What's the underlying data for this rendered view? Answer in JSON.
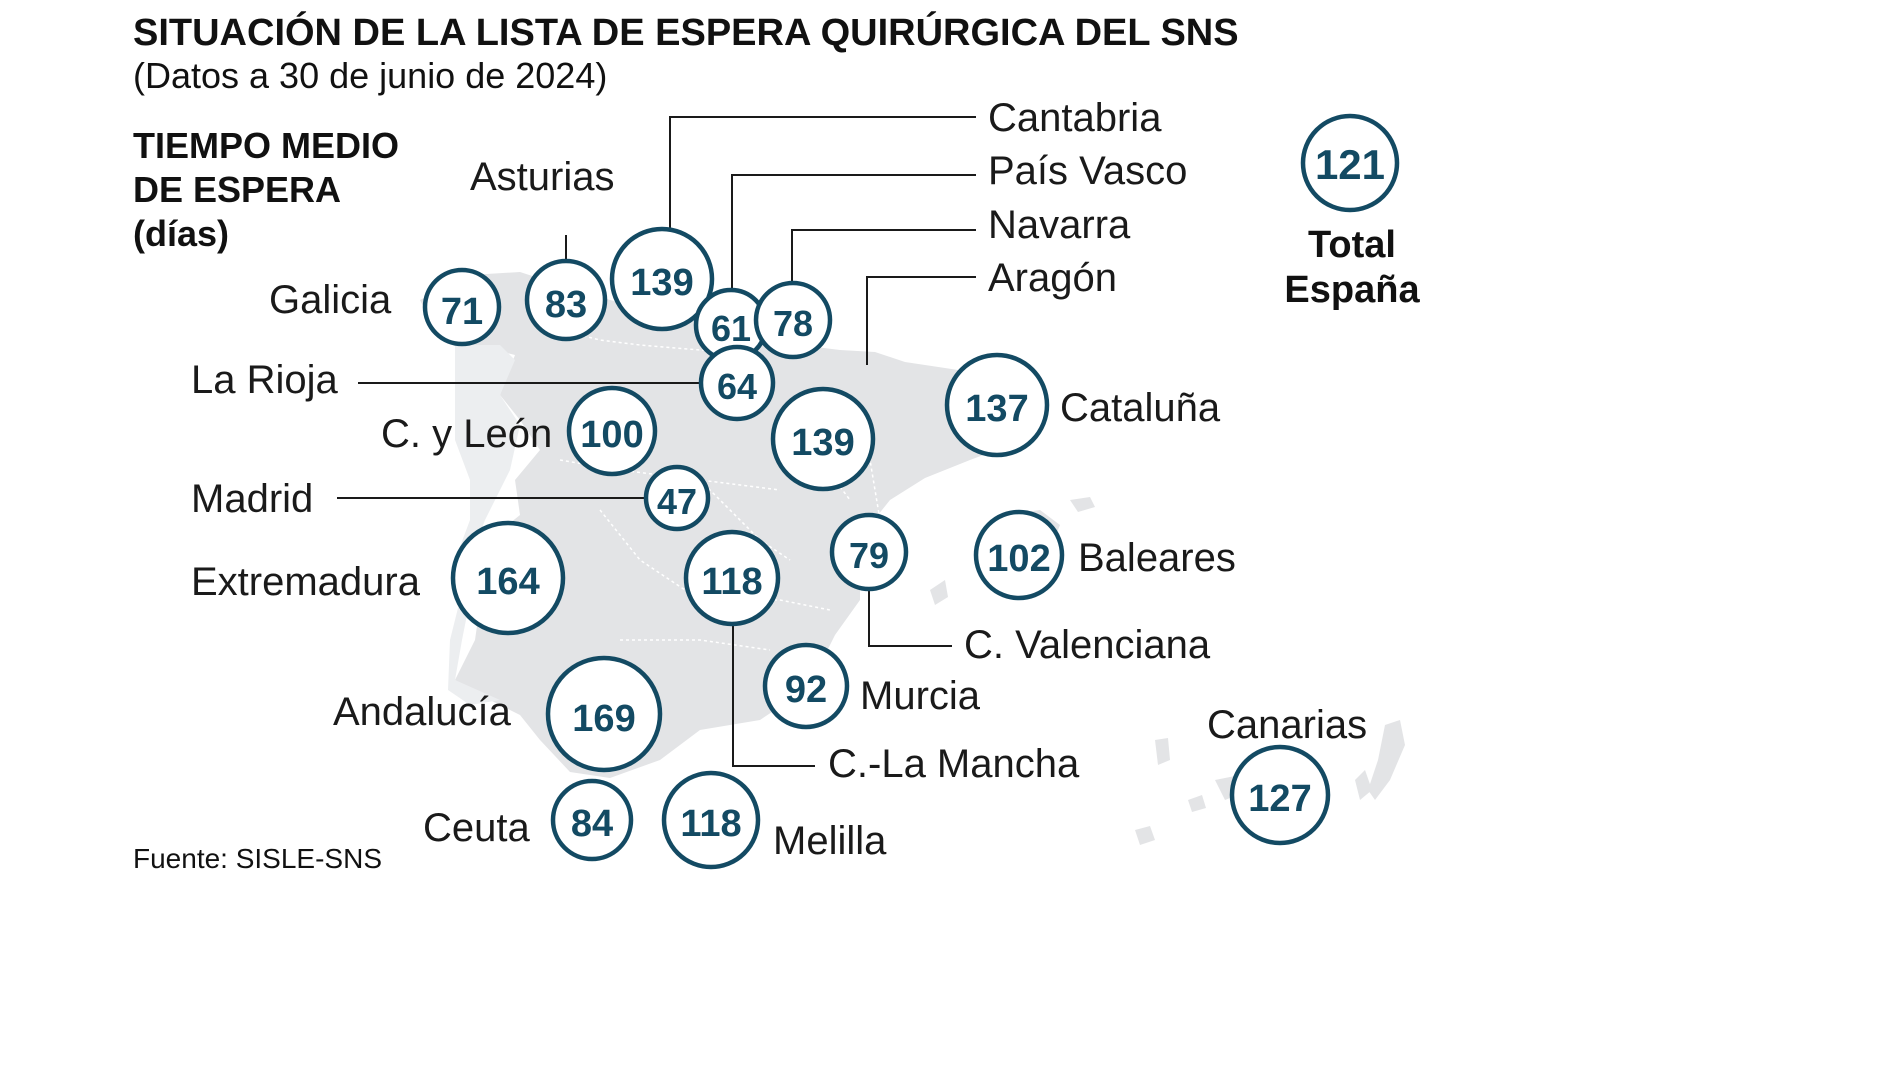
{
  "title": "SITUACIÓN DE LA LISTA DE ESPERA QUIRÚRGICA DEL SNS",
  "subtitle": "(Datos a 30 de junio de 2024)",
  "legend": {
    "line1": "TIEMPO MEDIO",
    "line2": "DE ESPERA",
    "line3": "(días)"
  },
  "total": {
    "value": "121",
    "label1": "Total",
    "label2": "España"
  },
  "regions": {
    "galicia": {
      "name": "Galicia",
      "value": "71"
    },
    "asturias": {
      "name": "Asturias",
      "value": "83"
    },
    "cantabria": {
      "name": "Cantabria",
      "value": "139"
    },
    "pais_vasco": {
      "name": "País Vasco",
      "value": "61"
    },
    "navarra": {
      "name": "Navarra",
      "value": "78"
    },
    "aragon": {
      "name": "Aragón",
      "value": "139"
    },
    "la_rioja": {
      "name": "La Rioja",
      "value": "64"
    },
    "castilla_leon": {
      "name": "C. y León",
      "value": "100"
    },
    "cataluna": {
      "name": "Cataluña",
      "value": "137"
    },
    "madrid": {
      "name": "Madrid",
      "value": "47"
    },
    "extremadura": {
      "name": "Extremadura",
      "value": "164"
    },
    "castilla_la_mancha": {
      "name": "C.-La Mancha",
      "value": "118"
    },
    "valenciana": {
      "name": "C. Valenciana",
      "value": "79"
    },
    "baleares": {
      "name": "Baleares",
      "value": "102"
    },
    "murcia": {
      "name": "Murcia",
      "value": "92"
    },
    "andalucia": {
      "name": "Andalucía",
      "value": "169"
    },
    "canarias": {
      "name": "Canarias",
      "value": "127"
    },
    "ceuta": {
      "name": "Ceuta",
      "value": "84"
    },
    "melilla": {
      "name": "Melilla",
      "value": "118"
    }
  },
  "source": "Fuente: SISLE-SNS",
  "colors": {
    "accent": "#134a63",
    "land": "#e3e4e6",
    "text": "#1a1a1a"
  }
}
